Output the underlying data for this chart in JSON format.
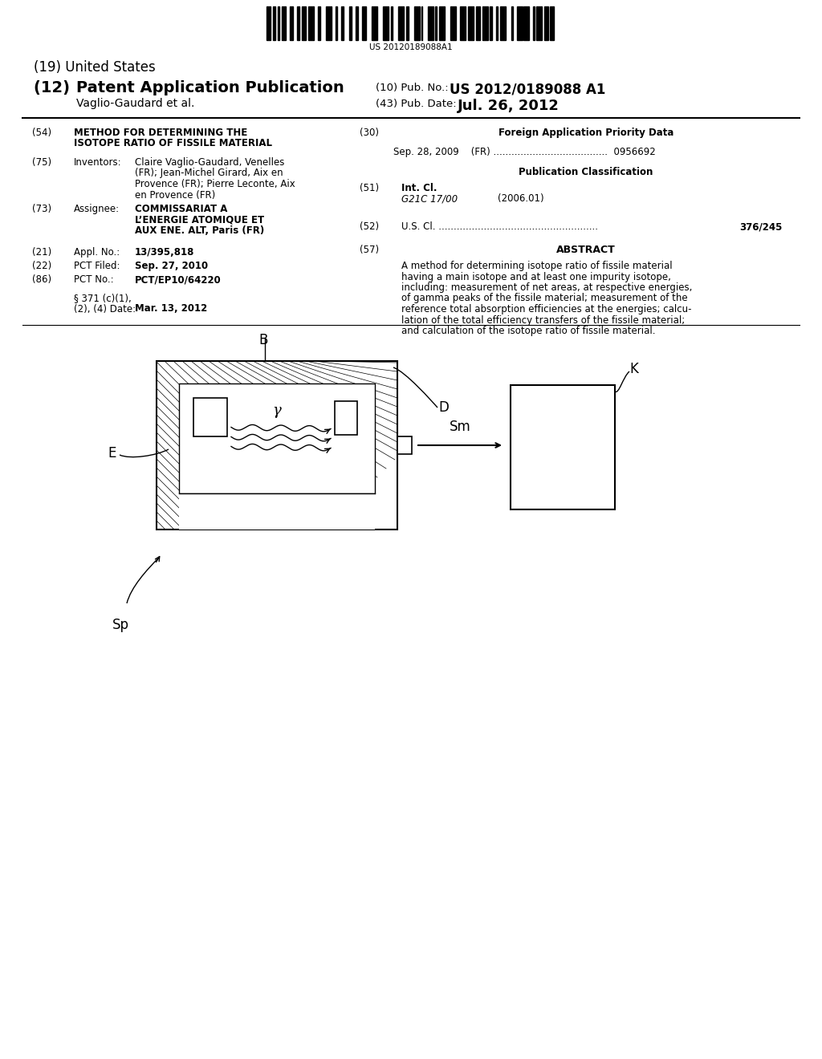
{
  "background_color": "#ffffff",
  "barcode_text": "US 20120189088A1",
  "title_19": "(19) United States",
  "title_12_prefix": "(12) ",
  "title_12_main": "Patent Application Publication",
  "pub_no_label": "(10) Pub. No.:",
  "pub_no_value": "US 2012/0189088 A1",
  "authors": "Vaglio-Gaudard et al.",
  "pub_date_label": "(43) Pub. Date:",
  "pub_date_value": "Jul. 26, 2012",
  "field_54_label": "(54)",
  "field_54_title1": "METHOD FOR DETERMINING THE",
  "field_54_title2": "ISOTOPE RATIO OF FISSILE MATERIAL",
  "field_75_label": "(75)",
  "field_75_key": "Inventors:",
  "field_75_lines": [
    "Claire Vaglio-Gaudard, Venelles",
    "(FR); Jean-Michel Girard, Aix en",
    "Provence (FR); Pierre Leconte, Aix",
    "en Provence (FR)"
  ],
  "field_73_label": "(73)",
  "field_73_key": "Assignee:",
  "field_73_lines": [
    "COMMISSARIAT A",
    "L’ENERGIE ATOMIQUE ET",
    "AUX ENE. ALT, Paris (FR)"
  ],
  "field_21_label": "(21)",
  "field_21_key": "Appl. No.:",
  "field_21_val": "13/395,818",
  "field_22_label": "(22)",
  "field_22_key": "PCT Filed:",
  "field_22_val": "Sep. 27, 2010",
  "field_86_label": "(86)",
  "field_86_key": "PCT No.:",
  "field_86_val": "PCT/EP10/64220",
  "field_371_line1": "§ 371 (c)(1),",
  "field_371_line2": "(2), (4) Date:",
  "field_371_val": "Mar. 13, 2012",
  "field_30_label": "(30)",
  "field_30_title": "Foreign Application Priority Data",
  "field_30_data": "Sep. 28, 2009    (FR) ......................................  0956692",
  "pub_class_title": "Publication Classification",
  "field_51_label": "(51)",
  "field_51_key": "Int. Cl.",
  "field_51_val1": "G21C 17/00",
  "field_51_val2": "(2006.01)",
  "field_52_label": "(52)",
  "field_52_dots": "U.S. Cl. .....................................................",
  "field_52_val": "376/245",
  "field_57_label": "(57)",
  "field_57_title": "ABSTRACT",
  "abstract_lines": [
    "A method for determining isotope ratio of fissile material",
    "having a main isotope and at least one impurity isotope,",
    "including: measurement of net areas, at respective energies,",
    "of gamma peaks of the fissile material; measurement of the",
    "reference total absorption efficiencies at the energies; calcu-",
    "lation of the total efficiency transfers of the fissile material;",
    "and calculation of the isotope ratio of fissile material."
  ],
  "diagram_label_B": "B",
  "diagram_label_D": "D",
  "diagram_label_E": "E",
  "diagram_label_K": "K",
  "diagram_label_Sm": "Sm",
  "diagram_label_Sp": "Sp",
  "diagram_label_gamma": "γ"
}
